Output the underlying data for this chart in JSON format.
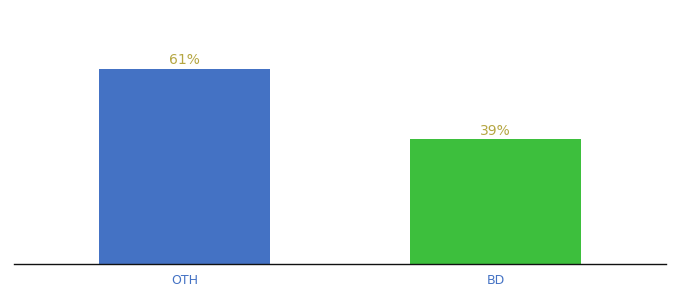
{
  "categories": [
    "OTH",
    "BD"
  ],
  "values": [
    61,
    39
  ],
  "bar_colors": [
    "#4472c4",
    "#3dbf3d"
  ],
  "label_color": "#b5a642",
  "label_format": [
    "61%",
    "39%"
  ],
  "ylim": [
    0,
    75
  ],
  "background_color": "#ffffff",
  "tick_label_color": "#4472c4",
  "bar_width": 0.55,
  "label_fontsize": 10,
  "tick_fontsize": 9
}
